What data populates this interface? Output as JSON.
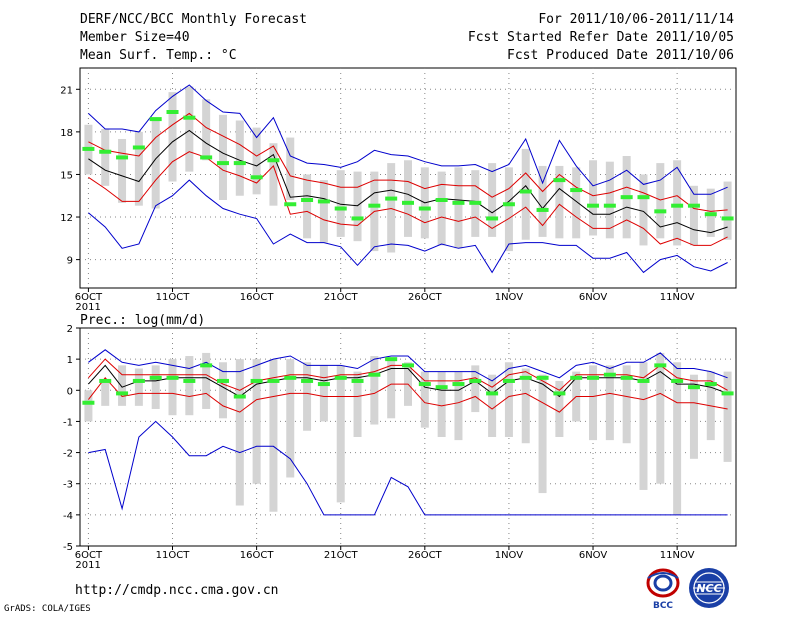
{
  "header": {
    "title": "DERF/NCC/BCC Monthly Forecast",
    "member_size": "Member Size=40",
    "variable": "Mean Surf. Temp.: °C",
    "period": "For 2011/10/06-2011/11/14",
    "started": "Fcst Started Refer Date 2011/10/05",
    "produced": "Fcst Produced Date 2011/10/06"
  },
  "footer": {
    "url": "http://cmdp.ncc.cma.gov.cn",
    "credit": "GrADS: COLA/IGES",
    "logo_bcc": "BCC",
    "logo_ncc": "NCC"
  },
  "colors": {
    "ensemble_mean": "#000000",
    "spread": "#dd0000",
    "extreme": "#0000cc",
    "observed": "#33ee33",
    "range_bar": "#d4d4d4",
    "grid": "#888888"
  },
  "chart_data": [
    {
      "type": "line",
      "title": "Mean Surf. Temp.: °C",
      "xlabel": "",
      "ylabel": "",
      "year_label": "2011",
      "x_ticks": [
        "6OCT",
        "11OCT",
        "16OCT",
        "21OCT",
        "26OCT",
        "1NOV",
        "6NOV",
        "11NOV"
      ],
      "x_tick_days": [
        1,
        6,
        11,
        16,
        21,
        26,
        31,
        36
      ],
      "yticks": [
        9,
        12,
        15,
        18,
        21
      ],
      "ylim": [
        7,
        22.5
      ],
      "xlim": [
        0.5,
        39.5
      ],
      "days": [
        1,
        2,
        3,
        4,
        5,
        6,
        7,
        8,
        9,
        10,
        11,
        12,
        13,
        14,
        15,
        16,
        17,
        18,
        19,
        20,
        21,
        22,
        23,
        24,
        25,
        26,
        27,
        28,
        29,
        30,
        31,
        32,
        33,
        34,
        35,
        36,
        37,
        38,
        39
      ],
      "bars_low": [
        15.0,
        14.2,
        13.0,
        12.8,
        12.6,
        14.5,
        15.2,
        16.0,
        13.2,
        13.5,
        13.6,
        12.8,
        13.2,
        10.5,
        10.2,
        10.6,
        10.3,
        9.6,
        9.5,
        10.6,
        10.5,
        10.0,
        9.8,
        10.6,
        10.6,
        9.6,
        10.4,
        10.6,
        10.5,
        10.5,
        10.7,
        10.5,
        10.5,
        10.0,
        10.5,
        10.0,
        10.0,
        10.6,
        10.4
      ],
      "bars_high": [
        18.5,
        18.2,
        17.5,
        18.0,
        18.8,
        20.8,
        21.2,
        20.3,
        19.2,
        18.8,
        18.3,
        17.2,
        17.6,
        15.0,
        14.6,
        15.3,
        15.2,
        15.2,
        15.8,
        16.0,
        15.5,
        15.2,
        15.5,
        15.3,
        15.8,
        15.5,
        16.8,
        15.6,
        15.6,
        15.5,
        16.0,
        15.9,
        16.3,
        15.0,
        15.8,
        16.0,
        14.2,
        14.0,
        14.5
      ],
      "observed": [
        16.8,
        16.6,
        16.2,
        16.9,
        18.9,
        19.4,
        19.0,
        16.2,
        15.8,
        15.8,
        14.8,
        16.0,
        12.9,
        13.2,
        13.1,
        12.6,
        11.9,
        12.8,
        13.3,
        13.0,
        12.6,
        13.2,
        13.0,
        13.0,
        11.9,
        12.9,
        13.8,
        12.5,
        14.6,
        13.9,
        12.8,
        12.8,
        13.4,
        13.4,
        12.4,
        12.8,
        12.8,
        12.2,
        11.9
      ],
      "series": [
        {
          "name": "Max member",
          "color": "#0000cc",
          "values": [
            19.3,
            18.2,
            18.2,
            18.0,
            19.5,
            20.5,
            21.3,
            20.2,
            19.4,
            19.3,
            17.6,
            19.0,
            16.3,
            15.8,
            15.7,
            15.5,
            15.9,
            16.7,
            16.4,
            16.3,
            15.9,
            15.6,
            15.6,
            15.7,
            15.2,
            15.7,
            17.5,
            14.4,
            17.4,
            15.6,
            14.2,
            14.6,
            15.3,
            14.3,
            14.6,
            15.5,
            13.6,
            13.6,
            14.1
          ]
        },
        {
          "name": "Mean + 1 SD",
          "color": "#dd0000",
          "values": [
            17.3,
            16.7,
            16.5,
            16.3,
            17.6,
            18.5,
            19.3,
            18.3,
            17.7,
            17.1,
            16.3,
            17.0,
            14.9,
            14.6,
            14.4,
            14.1,
            14.1,
            14.6,
            14.6,
            14.5,
            14.0,
            14.3,
            14.2,
            14.2,
            13.4,
            14.0,
            15.1,
            13.8,
            15.0,
            14.1,
            13.5,
            13.7,
            14.1,
            13.7,
            13.2,
            13.5,
            12.6,
            12.4,
            12.5
          ]
        },
        {
          "name": "Ensemble mean",
          "color": "#000000",
          "values": [
            16.1,
            15.3,
            14.9,
            14.5,
            16.1,
            17.3,
            18.1,
            17.2,
            16.5,
            16.0,
            15.6,
            16.4,
            13.4,
            13.5,
            13.3,
            12.9,
            12.8,
            13.7,
            13.9,
            13.6,
            13.0,
            13.3,
            13.2,
            13.1,
            12.3,
            13.1,
            14.2,
            12.6,
            14.0,
            13.1,
            12.2,
            12.2,
            12.7,
            12.4,
            11.3,
            11.6,
            11.1,
            10.9,
            11.3
          ]
        },
        {
          "name": "Mean - 1 SD",
          "color": "#dd0000",
          "values": [
            14.8,
            14.0,
            13.1,
            13.1,
            14.6,
            15.9,
            16.6,
            16.2,
            15.3,
            14.9,
            14.4,
            15.6,
            12.2,
            12.4,
            11.8,
            11.5,
            11.4,
            12.4,
            12.6,
            12.2,
            11.6,
            12.0,
            11.7,
            12.0,
            11.2,
            11.9,
            12.7,
            11.4,
            12.9,
            12.0,
            11.2,
            11.2,
            11.8,
            11.2,
            10.1,
            10.5,
            10.0,
            10.0,
            10.6
          ]
        },
        {
          "name": "Min member",
          "color": "#0000cc",
          "values": [
            12.3,
            11.3,
            9.8,
            10.1,
            12.8,
            13.5,
            14.6,
            13.5,
            12.6,
            12.2,
            11.9,
            10.1,
            10.8,
            10.2,
            10.2,
            9.9,
            8.6,
            9.9,
            10.1,
            10.0,
            9.6,
            10.1,
            9.8,
            10.0,
            8.1,
            10.1,
            10.2,
            10.2,
            10.0,
            10.0,
            9.1,
            9.1,
            9.5,
            8.1,
            9.0,
            9.3,
            8.5,
            8.2,
            8.8
          ]
        }
      ]
    },
    {
      "type": "line",
      "title": "Prec.: log(mm/d)",
      "xlabel": "",
      "ylabel": "",
      "year_label": "2011",
      "x_ticks": [
        "6OCT",
        "11OCT",
        "16OCT",
        "21OCT",
        "26OCT",
        "1NOV",
        "6NOV",
        "11NOV"
      ],
      "x_tick_days": [
        1,
        6,
        11,
        16,
        21,
        26,
        31,
        36
      ],
      "yticks": [
        -5,
        -4,
        -3,
        -2,
        -1,
        0,
        1,
        2
      ],
      "ylim": [
        -5,
        2
      ],
      "xlim": [
        0.5,
        39.5
      ],
      "days": [
        1,
        2,
        3,
        4,
        5,
        6,
        7,
        8,
        9,
        10,
        11,
        12,
        13,
        14,
        15,
        16,
        17,
        18,
        19,
        20,
        21,
        22,
        23,
        24,
        25,
        26,
        27,
        28,
        29,
        30,
        31,
        32,
        33,
        34,
        35,
        36,
        37,
        38,
        39
      ],
      "bars_low": [
        -1.0,
        -0.5,
        -0.5,
        -0.5,
        -0.6,
        -0.8,
        -0.8,
        -0.6,
        -0.9,
        -3.7,
        -3.0,
        -3.9,
        -2.8,
        -1.3,
        -1.0,
        -3.6,
        -1.5,
        -1.1,
        -0.9,
        -0.5,
        -1.2,
        -1.5,
        -1.6,
        -0.7,
        -1.5,
        -1.5,
        -1.7,
        -3.3,
        -1.5,
        -1.0,
        -1.6,
        -1.6,
        -1.7,
        -3.2,
        -3.0,
        -4.0,
        -2.2,
        -1.6,
        -2.3
      ],
      "bars_high": [
        0.0,
        0.3,
        0.8,
        0.7,
        0.8,
        1.0,
        1.1,
        1.2,
        0.9,
        1.0,
        1.0,
        1.0,
        1.0,
        0.9,
        0.8,
        0.8,
        0.6,
        1.1,
        1.0,
        0.9,
        0.6,
        0.6,
        0.6,
        0.8,
        0.5,
        0.9,
        0.7,
        0.5,
        0.3,
        0.6,
        0.8,
        0.8,
        0.8,
        0.9,
        1.2,
        0.9,
        0.5,
        0.6,
        0.6
      ],
      "observed": [
        -0.4,
        0.3,
        -0.1,
        0.3,
        0.4,
        0.4,
        0.3,
        0.8,
        0.3,
        -0.2,
        0.3,
        0.3,
        0.4,
        0.3,
        0.2,
        0.4,
        0.3,
        0.5,
        1.0,
        0.8,
        0.2,
        0.1,
        0.2,
        0.3,
        -0.1,
        0.3,
        0.4,
        0.4,
        -0.1,
        0.4,
        0.4,
        0.5,
        0.4,
        0.3,
        0.8,
        0.3,
        0.1,
        0.2,
        -0.1
      ],
      "series": [
        {
          "name": "Max member",
          "color": "#0000cc",
          "values": [
            0.9,
            1.3,
            0.9,
            0.8,
            0.9,
            0.8,
            0.7,
            0.9,
            0.6,
            0.6,
            0.8,
            1.0,
            1.1,
            0.8,
            0.8,
            0.8,
            0.7,
            1.0,
            1.1,
            1.1,
            0.6,
            0.6,
            0.6,
            0.6,
            0.3,
            0.7,
            0.8,
            0.6,
            0.4,
            0.8,
            0.9,
            0.7,
            0.9,
            0.9,
            1.2,
            0.7,
            0.7,
            0.6,
            0.4
          ]
        },
        {
          "name": "Mean + 1 SD",
          "color": "#dd0000",
          "values": [
            0.4,
            1.0,
            0.5,
            0.5,
            0.5,
            0.5,
            0.5,
            0.5,
            0.2,
            0.0,
            0.3,
            0.4,
            0.5,
            0.5,
            0.4,
            0.5,
            0.5,
            0.6,
            0.8,
            0.8,
            0.3,
            0.3,
            0.3,
            0.4,
            0.1,
            0.5,
            0.6,
            0.3,
            0.0,
            0.5,
            0.5,
            0.5,
            0.5,
            0.4,
            0.8,
            0.4,
            0.3,
            0.3,
            0.0
          ]
        },
        {
          "name": "Ensemble mean",
          "color": "#000000",
          "values": [
            0.2,
            0.8,
            0.1,
            0.3,
            0.3,
            0.4,
            0.4,
            0.4,
            0.1,
            -0.2,
            0.2,
            0.3,
            0.4,
            0.4,
            0.3,
            0.4,
            0.4,
            0.5,
            0.7,
            0.7,
            0.1,
            0.0,
            0.0,
            0.3,
            -0.1,
            0.3,
            0.4,
            0.2,
            -0.2,
            0.4,
            0.4,
            0.4,
            0.4,
            0.3,
            0.6,
            0.2,
            0.2,
            0.1,
            -0.1
          ]
        },
        {
          "name": "Mean - 1 SD",
          "color": "#dd0000",
          "values": [
            -0.3,
            0.4,
            -0.2,
            -0.1,
            -0.1,
            -0.1,
            -0.2,
            -0.1,
            -0.5,
            -0.7,
            -0.3,
            -0.2,
            -0.1,
            -0.1,
            -0.2,
            -0.2,
            -0.2,
            -0.1,
            0.2,
            0.2,
            -0.4,
            -0.5,
            -0.4,
            -0.2,
            -0.6,
            -0.2,
            -0.1,
            -0.4,
            -0.7,
            -0.2,
            -0.2,
            -0.1,
            -0.2,
            -0.3,
            -0.1,
            -0.4,
            -0.4,
            -0.5,
            -0.6
          ]
        },
        {
          "name": "Min member",
          "color": "#0000cc",
          "values": [
            -2.0,
            -1.9,
            -3.8,
            -1.5,
            -1.0,
            -1.5,
            -2.1,
            -2.1,
            -1.8,
            -2.0,
            -1.8,
            -1.8,
            -2.2,
            -3.0,
            -4.0,
            -4.0,
            -4.0,
            -4.0,
            -2.8,
            -3.1,
            -4.0,
            -4.0,
            -4.0,
            -4.0,
            -4.0,
            -4.0,
            -4.0,
            -4.0,
            -4.0,
            -4.0,
            -4.0,
            -4.0,
            -4.0,
            -4.0,
            -4.0,
            -4.0,
            -4.0,
            -4.0,
            -4.0
          ]
        }
      ]
    }
  ]
}
